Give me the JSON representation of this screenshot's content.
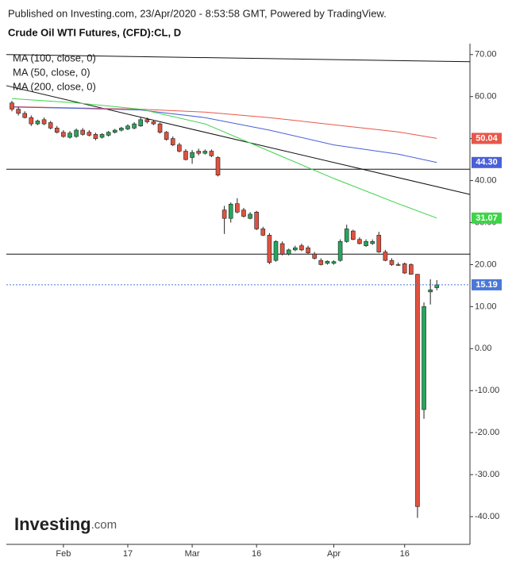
{
  "header": "Published on Investing.com, 23/Apr/2020 - 8:53:58 GMT, Powered by TradingView.",
  "chart_data": {
    "type": "candlestick",
    "title": "Crude Oil WTI Futures, (CFD):CL, D",
    "legend": [
      "MA (100, close, 0)",
      "MA (50, close, 0)",
      "MA (200, close, 0)"
    ],
    "categories": [
      null,
      null,
      null,
      null,
      null,
      null,
      null,
      null,
      "Feb",
      null,
      null,
      null,
      null,
      null,
      null,
      null,
      null,
      null,
      "17",
      null,
      null,
      null,
      null,
      null,
      null,
      null,
      null,
      null,
      "Mar",
      null,
      null,
      null,
      null,
      null,
      null,
      null,
      null,
      null,
      "16",
      null,
      null,
      null,
      null,
      null,
      null,
      null,
      null,
      null,
      null,
      null,
      "Apr",
      null,
      null,
      null,
      null,
      null,
      null,
      null,
      null,
      null,
      null,
      "16",
      null,
      null,
      null,
      null,
      null
    ],
    "open": [
      58.5,
      57,
      56,
      55,
      53.5,
      54.5,
      53.8,
      52.5,
      51.5,
      50.3,
      50.5,
      52,
      51.5,
      51,
      50.3,
      50.8,
      51.5,
      52,
      52.3,
      52.5,
      53,
      54.5,
      54,
      53.5,
      51.5,
      50,
      48.5,
      47,
      45.5,
      47,
      46.5,
      47,
      45.5,
      33,
      31,
      34.5,
      33,
      31,
      32.5,
      28.5,
      27,
      21,
      25,
      22.5,
      23.5,
      24.5,
      24,
      22.5,
      21,
      20.3,
      20.3,
      21,
      25.5,
      28,
      26,
      24.5,
      25,
      27,
      23,
      21,
      20,
      20.2,
      20,
      17.7,
      -14.5,
      13.5,
      14.5
    ],
    "high": [
      59,
      57.5,
      56.5,
      55.5,
      54.5,
      55,
      54.2,
      53,
      52,
      51.8,
      52.4,
      52.5,
      52,
      51.4,
      51.3,
      51.8,
      52.3,
      52.8,
      53.4,
      53.9,
      55,
      55,
      54.4,
      53.8,
      51.8,
      50.5,
      49,
      47.5,
      47.3,
      47.6,
      47.4,
      47.4,
      45.8,
      34,
      34.8,
      35.8,
      33.5,
      32.5,
      32.8,
      29,
      27.5,
      25.8,
      25.5,
      23.8,
      24.5,
      25,
      24.5,
      23,
      21.5,
      21,
      21,
      26,
      29.5,
      28.3,
      26.5,
      26,
      26,
      27.8,
      23.5,
      21.5,
      20.5,
      20.5,
      20.3,
      17.8,
      11,
      16.5,
      16.3
    ],
    "low": [
      56.5,
      55.5,
      54.8,
      53,
      53.2,
      53.2,
      52.2,
      51.2,
      50.2,
      50,
      50.2,
      50.7,
      50.5,
      49.6,
      50,
      50.5,
      51.2,
      51.7,
      52,
      52.2,
      52.8,
      53.6,
      53.2,
      51.2,
      49.5,
      48.2,
      46.7,
      44.8,
      44,
      46,
      46.2,
      45.6,
      41,
      27.3,
      30,
      32.2,
      31.2,
      30.8,
      28.2,
      26.8,
      20.1,
      20.7,
      22.2,
      22.2,
      23.2,
      23.2,
      22.5,
      21.2,
      19.8,
      20,
      20,
      20.7,
      25.2,
      25.8,
      24.8,
      24.2,
      24.7,
      22.8,
      20.8,
      19.7,
      19.7,
      17.8,
      17.6,
      -40.3,
      -16.7,
      10.5,
      13.9
    ],
    "close": [
      57,
      56,
      55,
      53.5,
      54.2,
      53.5,
      52.5,
      51.5,
      50.5,
      51.3,
      52,
      51,
      50.8,
      50,
      51,
      51.5,
      52,
      52.5,
      53,
      53.5,
      54.5,
      54,
      53.5,
      51.5,
      49.8,
      48.5,
      47,
      45,
      46.7,
      46.5,
      47,
      45.9,
      41.3,
      31,
      34.4,
      32.5,
      31.5,
      32,
      28.5,
      27,
      20.5,
      25.5,
      22.5,
      23.5,
      24,
      23.5,
      22.8,
      21.5,
      20,
      20.8,
      20.7,
      25.5,
      28.5,
      26,
      25,
      25.5,
      25.5,
      23,
      21,
      20,
      19.9,
      18,
      17.7,
      -37.6,
      10,
      14,
      15.19
    ],
    "up_color": "#26a65b",
    "down_color": "#e0523f",
    "series": [
      {
        "color": "#e8574a",
        "x": [
          0,
          10,
          20,
          30,
          40,
          50,
          60,
          66
        ],
        "values": [
          57.6,
          57.3,
          57,
          56.3,
          55,
          53.3,
          51.6,
          50.04
        ],
        "end_label": "50.04"
      },
      {
        "color": "#4a5fd8",
        "x": [
          0,
          10,
          20,
          30,
          40,
          50,
          60,
          66
        ],
        "values": [
          57.5,
          57.2,
          56.8,
          55,
          52,
          48.5,
          46.3,
          44.3
        ],
        "end_label": "44.30"
      },
      {
        "color": "#3fd34a",
        "x": [
          0,
          10,
          20,
          30,
          40,
          50,
          60,
          66
        ],
        "values": [
          59.5,
          58.5,
          57,
          53.5,
          47,
          40.5,
          34.5,
          31.07
        ],
        "end_label": "31.07"
      }
    ],
    "trend_lines": [
      [
        70,
        68.3
      ],
      [
        62.6,
        36.7
      ],
      [
        42.7,
        42.7
      ],
      [
        22.5,
        22.5
      ]
    ],
    "price_color": "#4a78d9",
    "ylim": [
      -46.6,
      72.6
    ],
    "yticks": [
      {
        "value": 70,
        "label": "70.00"
      },
      {
        "value": 60,
        "label": "60.00"
      },
      {
        "value": 50,
        "label": "50.00"
      },
      {
        "value": 40,
        "label": "40.00"
      },
      {
        "value": 30,
        "label": "30.00"
      },
      {
        "value": 20,
        "label": "20.00"
      },
      {
        "value": 10,
        "label": "10.00"
      },
      {
        "value": 0,
        "label": "0.00"
      },
      {
        "value": -10,
        "label": "-10.00"
      },
      {
        "value": -20,
        "label": "-20.00"
      },
      {
        "value": -30,
        "label": "-30.00"
      },
      {
        "value": -40,
        "label": "-40.00"
      }
    ]
  },
  "logo": {
    "main": "Investing",
    "suffix": ".com"
  }
}
